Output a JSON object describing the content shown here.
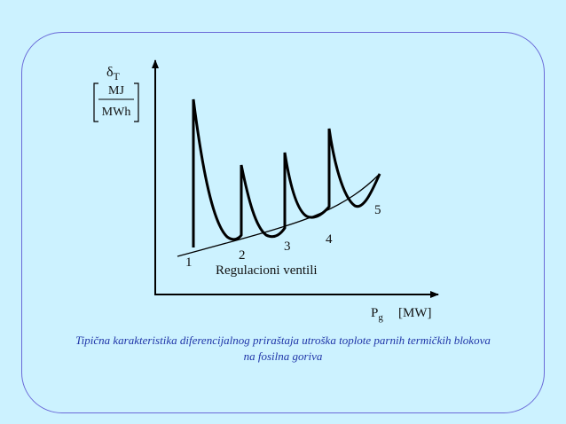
{
  "diagram": {
    "y_axis": {
      "symbol": "δ",
      "subscript": "T",
      "unit_top": "MJ",
      "unit_bottom": "MWh"
    },
    "x_axis": {
      "symbol": "P",
      "subscript": "g",
      "unit": "[MW]"
    },
    "point_labels": [
      "1",
      "2",
      "3",
      "4",
      "5"
    ],
    "curve_label": "Regulacioni ventili"
  },
  "caption": {
    "line1": "Tipična karakteristika diferencijalnog priraštaja utroška toplote parnih termičkih blokova",
    "line2": "na fosilna goriva"
  },
  "colors": {
    "background": "#ccf2ff",
    "border": "#6a6ad8",
    "caption": "#1f35a8",
    "lines": "#000000"
  }
}
